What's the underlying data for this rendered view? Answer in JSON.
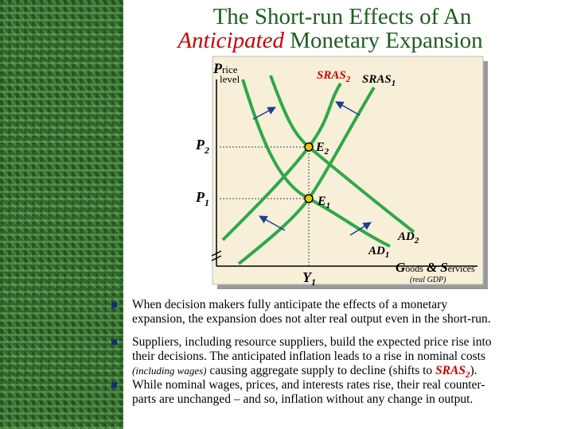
{
  "title": {
    "line1": "The Short-run Effects of An",
    "emph": "Anticipated",
    "line2_rest": " Monetary Expansion"
  },
  "diagram": {
    "y_axis": {
      "initial": "P",
      "rest": "rice",
      "line2": "level"
    },
    "x_axis": {
      "g": "G",
      "g_rest": "oods",
      "amp": "&",
      "s": "S",
      "s_rest": "ervices",
      "note": "(real GDP)"
    },
    "sras2": [
      "SRAS",
      "2"
    ],
    "sras1": [
      "SRAS",
      "1"
    ],
    "p2": [
      "P",
      "2"
    ],
    "p1": [
      "P",
      "1"
    ],
    "e2": [
      "E",
      "2"
    ],
    "e1": [
      "E",
      "1"
    ],
    "ad2": [
      "AD",
      "2"
    ],
    "ad1": [
      "AD",
      "1"
    ],
    "y1": [
      "Y",
      "1"
    ]
  },
  "bullets": [
    {
      "lines": [
        "When decision makers fully anticipate the effects of a monetary",
        "expansion, the expansion does not alter real output even in the short-run."
      ]
    },
    {
      "lines": [
        "Suppliers, including resource suppliers, build the expected price rise into",
        "their decisions.  The anticipated inflation leads to a rise in nominal costs"
      ],
      "last_line": {
        "note": "(including wages)",
        "text": " causing aggregate supply to decline (shifts to ",
        "emph": "SRAS",
        "emph_sub": "2",
        "end": ")."
      }
    },
    {
      "lines": [
        "While nominal wages, prices, and interests rates rise, their real counter-",
        "parts are unchanged – and so, inflation without any change in output."
      ]
    }
  ]
}
